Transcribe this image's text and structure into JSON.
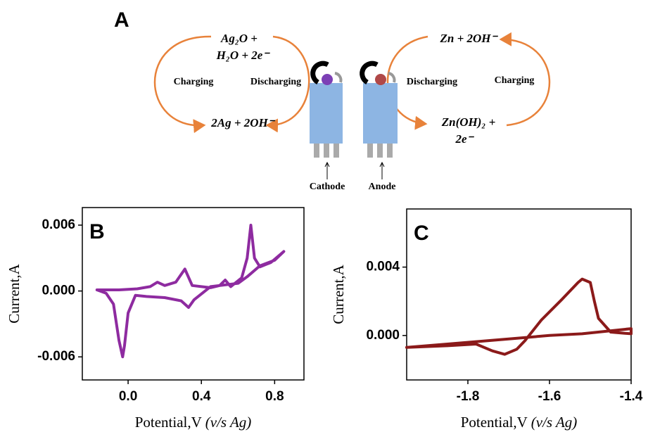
{
  "diagram": {
    "panel": "A",
    "cathode_reaction": {
      "top_line1": "Ag₂O +",
      "top_line2": "H₂O + 2e⁻",
      "bottom": "2Ag + 2OH⁻",
      "left": "Charging",
      "right": "Discharging"
    },
    "anode_reaction": {
      "top": "Zn + 2OH⁻",
      "bottom_line1": "Zn(OH)₂ +",
      "bottom_line2": "2e⁻",
      "left": "Discharging",
      "right": "Charging"
    },
    "cathode_label": "Cathode",
    "anode_label": "Anode"
  },
  "chart_data": [
    {
      "type": "line",
      "panel": "B",
      "y_label": "Current,A",
      "x_label": "Potential,V",
      "x_label_italic": "(v/s Ag)",
      "xlim": [
        -0.25,
        0.96
      ],
      "ylim": [
        -0.0081,
        0.0076
      ],
      "xticks": [
        {
          "value": 0,
          "label": "0.0"
        },
        0.4,
        0.8
      ],
      "yticks": [
        -0.006,
        {
          "value": 0,
          "label": "0.000"
        },
        0.006
      ],
      "series": [
        {
          "color": "#8e2ba0",
          "x": [
            -0.17,
            -0.05,
            0.05,
            0.12,
            0.16,
            0.2,
            0.26,
            0.31,
            0.35,
            0.45,
            0.5,
            0.53,
            0.56,
            0.62,
            0.65,
            0.67,
            0.69,
            0.72,
            0.78,
            0.85,
            0.8,
            0.72,
            0.65,
            0.6,
            0.45,
            0.36,
            0.33,
            0.29,
            0.2,
            0.1,
            0.04,
            0.0,
            -0.02,
            -0.03,
            -0.05,
            -0.08,
            -0.12,
            -0.17
          ],
          "values": [
            0.0001,
            0.0001,
            0.0002,
            0.0004,
            0.0008,
            0.0005,
            0.0008,
            0.002,
            0.0005,
            0.0003,
            0.0005,
            0.001,
            0.0004,
            0.0012,
            0.003,
            0.006,
            0.003,
            0.0022,
            0.0026,
            0.0036,
            0.0028,
            0.0023,
            0.0013,
            0.0007,
            0.0004,
            -0.0008,
            -0.0015,
            -0.0009,
            -0.0006,
            -0.0005,
            -0.0004,
            -0.002,
            -0.005,
            -0.006,
            -0.0045,
            -0.0012,
            -0.0002,
            0.0001
          ]
        }
      ]
    },
    {
      "type": "line",
      "panel": "C",
      "y_label": "Current,A",
      "x_label": "Potential,V",
      "x_label_italic": "(v/s Ag)",
      "xlim": [
        -1.95,
        -1.4
      ],
      "ylim": [
        -0.0026,
        0.0074
      ],
      "xticks": [
        -1.8,
        -1.6,
        -1.4
      ],
      "yticks": [
        {
          "value": 0,
          "label": "0.000"
        },
        0.004
      ],
      "series": [
        {
          "color": "#8b1a1a",
          "x": [
            -1.95,
            -1.85,
            -1.78,
            -1.74,
            -1.71,
            -1.68,
            -1.66,
            -1.62,
            -1.57,
            -1.53,
            -1.52,
            -1.5,
            -1.49,
            -1.48,
            -1.45,
            -1.4,
            -1.4,
            -1.52,
            -1.6,
            -1.7,
            -1.85,
            -1.95
          ],
          "values": [
            -0.0007,
            -0.0006,
            -0.0005,
            -0.0009,
            -0.0011,
            -0.0008,
            -0.0003,
            0.0009,
            0.0021,
            0.0031,
            0.0033,
            0.0031,
            0.002,
            0.001,
            0.0002,
            0.0001,
            0.0004,
            0.0001,
            0.0,
            -0.0002,
            -0.0005,
            -0.0007
          ]
        }
      ]
    }
  ]
}
